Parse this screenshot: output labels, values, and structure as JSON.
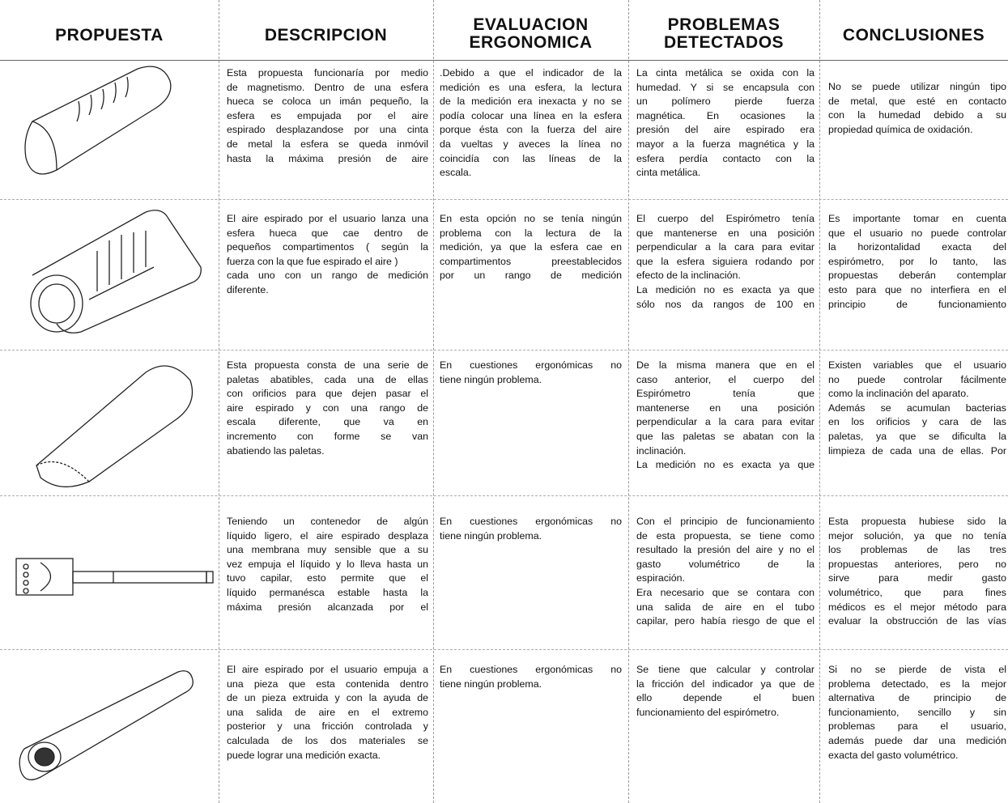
{
  "headers": [
    [
      "PROPUESTA"
    ],
    [
      "DESCRIPCION"
    ],
    [
      "EVALUACION",
      "ERGONOMICA"
    ],
    [
      "PROBLEMAS",
      "DETECTADOS"
    ],
    [
      "CONCLUSIONES"
    ]
  ],
  "rows": [
    [
      [
        "Esta propuesta funcionaría por medio",
        "de magnetismo. Dentro de una esfera",
        "hueca se coloca un imán pequeño, la",
        "esfera es empujada por el aire",
        "espirado desplazandose por una cinta",
        "de metal la esfera se queda inmóvil",
        "hasta la máxima presión de aire"
      ],
      [
        ".Debido a que el indicador de la",
        "medición es una esfera, la lectura",
        "de la medición era inexacta y no se",
        "podía colocar una línea en la esfera",
        "porque ésta con la fuerza del aire",
        "da vueltas y aveces la línea no",
        "coincidía con las líneas de la",
        "escala."
      ],
      [
        "La cinta metálica se oxida con la",
        "humedad. Y si se encapsula con",
        "un polímero pierde fuerza",
        "magnética. En ocasiones la",
        "presión del aire espirado era",
        "mayor a la fuerza magnética y la",
        "esfera perdía contacto con la",
        "cinta metálica."
      ],
      [
        "No se puede utilizar ningún tipo",
        "de metal, que esté en contacto",
        "con la humedad debido a su",
        "propiedad química de oxidación."
      ]
    ],
    [
      [
        "El aire espirado por el usuario lanza una",
        "esfera hueca que cae dentro de",
        "pequeños compartimentos ( según la",
        "fuerza con la que fue espirado el aire )",
        "cada uno con un rango de medición",
        "diferente."
      ],
      [
        "En esta opción no se tenía ningún",
        "problema con la lectura de la",
        "medición, ya que la esfera cae en",
        "compartimentos preestablecidos",
        "por un rango de medición"
      ],
      [
        "El cuerpo del Espirómetro tenía",
        "que mantenerse en una posición",
        "perpendicular a la cara para evitar",
        "que la esfera siguiera rodando por",
        "efecto de la inclinación.",
        "La medición no es exacta ya que",
        "sólo nos da rangos de 100 en"
      ],
      [
        "Es importante tomar en cuenta",
        "que el usuario no puede controlar",
        "la horizontalidad exacta del",
        "espirómetro, por lo tanto, las",
        "propuestas deberán contemplar",
        "esto para que no interfiera en el",
        "principio de funcionamiento"
      ]
    ],
    [
      [
        "Esta propuesta consta de una serie de",
        "paletas abatibles, cada una de ellas",
        "con orificios para que dejen pasar el",
        "aire espirado y con una rango de",
        "escala diferente, que va en",
        "incremento con forme se van",
        "abatiendo las paletas."
      ],
      [
        "En cuestiones ergonómicas no",
        "tiene ningún problema."
      ],
      [
        "De la misma manera que en el",
        "caso anterior, el cuerpo del",
        "Espirómetro tenía que",
        "mantenerse en una posición",
        "perpendicular a la cara para evitar",
        "que las paletas se abatan con la",
        "inclinación.",
        "La medición no es exacta ya que"
      ],
      [
        "Existen variables que el usuario",
        "no puede controlar fácilmente",
        "como la inclinación del aparato.",
        "Además se acumulan bacterias",
        "en los orificios y cara de las",
        "paletas, ya que se dificulta la",
        "limpieza de cada una de ellas. Por"
      ]
    ],
    [
      [
        "Teniendo un contenedor de algún",
        "líquido ligero, el aire espirado desplaza",
        "una membrana muy sensible que a su",
        "vez empuja el líquido y lo lleva hasta un",
        "tuvo capilar, esto permite que el",
        "líquido permanésca estable hasta la",
        "máxima presión alcanzada por el"
      ],
      [
        "En cuestiones ergonómicas no",
        "tiene ningún problema."
      ],
      [
        "Con el principio de funcionamiento",
        "de esta propuesta, se tiene como",
        "resultado la presión del aire y no el",
        "gasto volumétrico de la",
        "espiración.",
        "Era necesario que se contara con",
        "una salida de aire en el tubo",
        "capilar, pero había riesgo de que el"
      ],
      [
        "Esta propuesta hubiese sido la",
        "mejor solución, ya que no tenía",
        "los problemas de las tres",
        "propuestas anteriores, pero no",
        "sirve para medir gasto",
        "volumétrico, que para fines",
        "médicos es el mejor método para",
        "evaluar la obstrucción de las vías"
      ]
    ],
    [
      [
        "El aire espirado por el usuario empuja a",
        "una pieza que esta contenida dentro",
        "de un pieza extruida y con la ayuda de",
        "una salida de aire en el extremo",
        "posterior y una fricción controlada y",
        "calculada de los dos materiales se",
        "puede lograr una medición exacta."
      ],
      [
        "En cuestiones ergonómicas no",
        "tiene ningún problema."
      ],
      [
        "Se tiene que calcular y controlar",
        "la fricción del indicador ya que de",
        "ello depende el buen",
        "funcionamiento del espirómetro."
      ],
      [
        "Si no se pierde de vista el",
        "problema detectado, es la mejor",
        "alternativa de principio de",
        "funcionamiento, sencillo y sin",
        "problemas para el usuario,",
        "además puede dar una medición",
        "exacta del gasto volumétrico."
      ]
    ]
  ]
}
